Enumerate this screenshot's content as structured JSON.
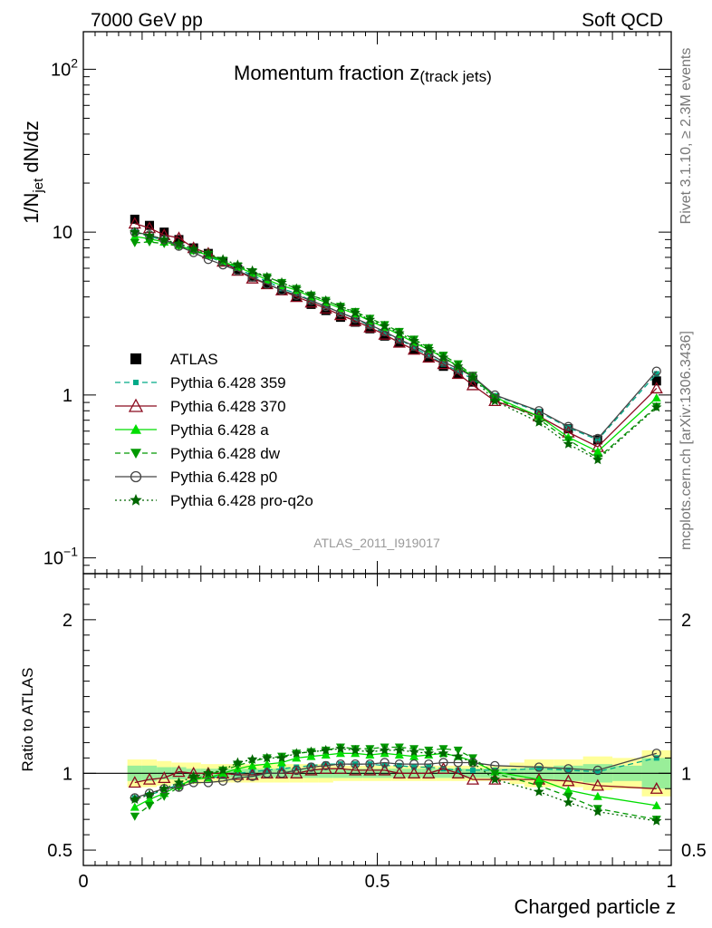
{
  "header": {
    "left": "7000 GeV pp",
    "right": "Soft QCD",
    "title_main": "Momentum fraction z",
    "title_sub": "(track jets)",
    "ylabel_main": "1/N",
    "ylabel_sub": "jet",
    "ylabel_rest": " dN/dz",
    "ratio_ylabel": "Ratio to ATLAS",
    "xlabel": "Charged particle z",
    "watermark": "ATLAS_2011_I919017",
    "side_rivet": "Rivet 3.1.10, ≥ 2.3M events",
    "side_mcplots": "mcplots.cern.ch [arXiv:1306.3436]"
  },
  "chart_data": [
    {
      "type": "line",
      "panel": "main",
      "yscale": "log",
      "xlim": [
        0,
        1
      ],
      "ylim": [
        0.08,
        170
      ],
      "yticks": [
        {
          "v": 0.1,
          "b": "10",
          "s": "−1"
        },
        {
          "v": 1,
          "b": "1",
          "s": ""
        },
        {
          "v": 10,
          "b": "10",
          "s": ""
        },
        {
          "v": 100,
          "b": "10",
          "s": "2"
        }
      ],
      "xticks": [
        {
          "v": 0,
          "l": "0"
        },
        {
          "v": 0.5,
          "l": "0.5"
        },
        {
          "v": 1,
          "l": "1"
        }
      ],
      "x": [
        0.0875,
        0.1125,
        0.1375,
        0.1625,
        0.1875,
        0.2125,
        0.2375,
        0.2625,
        0.2875,
        0.3125,
        0.3375,
        0.3625,
        0.3875,
        0.4125,
        0.4375,
        0.4625,
        0.4875,
        0.5125,
        0.5375,
        0.5625,
        0.5875,
        0.6125,
        0.6375,
        0.6625,
        0.7,
        0.775,
        0.825,
        0.875,
        0.975
      ],
      "series": [
        {
          "name": "ATLAS",
          "color": "#000000",
          "marker": "square",
          "dash": "none",
          "values": [
            12.0,
            11.0,
            10.0,
            9.0,
            8.0,
            7.4,
            6.6,
            5.9,
            5.3,
            4.8,
            4.4,
            4.0,
            3.6,
            3.3,
            3.0,
            2.8,
            2.55,
            2.3,
            2.1,
            1.9,
            1.7,
            1.5,
            1.35,
            1.2,
            0.96,
            0.77,
            0.62,
            0.53,
            1.22
          ]
        },
        {
          "name": "Pythia 6.428 359",
          "color": "#00aa88",
          "marker": "smallsquare",
          "dash": "6,4",
          "values": [
            10.0,
            9.4,
            8.9,
            8.4,
            7.7,
            7.1,
            6.5,
            6.0,
            5.4,
            5.0,
            4.5,
            4.2,
            3.8,
            3.5,
            3.2,
            2.95,
            2.65,
            2.4,
            2.2,
            1.95,
            1.75,
            1.55,
            1.4,
            1.25,
            0.99,
            0.79,
            0.63,
            0.53,
            1.35
          ]
        },
        {
          "name": "Pythia 6.428 370",
          "color": "#8b0a1e",
          "marker": "triangle-open",
          "dash": "none",
          "values": [
            11.3,
            10.6,
            9.6,
            9.2,
            8.0,
            7.4,
            6.6,
            5.8,
            5.2,
            4.8,
            4.4,
            4.0,
            3.7,
            3.4,
            3.1,
            2.85,
            2.6,
            2.35,
            2.1,
            1.9,
            1.7,
            1.55,
            1.35,
            1.15,
            0.92,
            0.74,
            0.59,
            0.48,
            1.1
          ]
        },
        {
          "name": "Pythia 6.428 a",
          "color": "#00dd00",
          "marker": "triangle",
          "dash": "none",
          "values": [
            9.4,
            9.1,
            8.7,
            8.3,
            7.7,
            7.2,
            6.6,
            6.1,
            5.6,
            5.1,
            4.7,
            4.4,
            4.0,
            3.7,
            3.4,
            3.15,
            2.85,
            2.6,
            2.35,
            2.1,
            1.9,
            1.7,
            1.5,
            1.3,
            0.97,
            0.74,
            0.55,
            0.45,
            0.96
          ]
        },
        {
          "name": "Pythia 6.428 dw",
          "color": "#009900",
          "marker": "triangle-down",
          "dash": "6,4",
          "values": [
            8.6,
            8.7,
            8.5,
            8.2,
            7.7,
            7.3,
            6.7,
            6.2,
            5.7,
            5.3,
            4.9,
            4.5,
            4.1,
            3.8,
            3.5,
            3.25,
            2.95,
            2.7,
            2.45,
            2.2,
            1.95,
            1.75,
            1.55,
            1.32,
            0.96,
            0.71,
            0.53,
            0.41,
            0.85
          ]
        },
        {
          "name": "Pythia 6.428 p0",
          "color": "#444444",
          "marker": "circle-open",
          "dash": "none",
          "values": [
            10.0,
            9.6,
            9.0,
            8.2,
            7.5,
            6.8,
            6.3,
            5.8,
            5.3,
            4.8,
            4.4,
            4.1,
            3.8,
            3.5,
            3.2,
            2.95,
            2.7,
            2.45,
            2.2,
            2.0,
            1.8,
            1.6,
            1.45,
            1.3,
            1.0,
            0.8,
            0.64,
            0.54,
            1.4
          ]
        },
        {
          "name": "Pythia 6.428 pro-q2o",
          "color": "#006600",
          "marker": "star",
          "dash": "2,3",
          "values": [
            10.0,
            9.5,
            9.0,
            8.5,
            7.9,
            7.4,
            6.8,
            6.3,
            5.8,
            5.3,
            4.9,
            4.5,
            4.1,
            3.8,
            3.5,
            3.2,
            2.9,
            2.65,
            2.4,
            2.15,
            1.92,
            1.7,
            1.5,
            1.28,
            0.92,
            0.68,
            0.5,
            0.4,
            0.84
          ]
        }
      ]
    },
    {
      "type": "line",
      "panel": "ratio",
      "ylim": [
        0.4,
        2.3
      ],
      "yticks": [
        {
          "v": 0.5,
          "l": "0.5"
        },
        {
          "v": 1,
          "l": "1"
        },
        {
          "v": 2,
          "l": "2"
        }
      ],
      "x": [
        0.0875,
        0.1125,
        0.1375,
        0.1625,
        0.1875,
        0.2125,
        0.2375,
        0.2625,
        0.2875,
        0.3125,
        0.3375,
        0.3625,
        0.3875,
        0.4125,
        0.4375,
        0.4625,
        0.4875,
        0.5125,
        0.5375,
        0.5625,
        0.5875,
        0.6125,
        0.6375,
        0.6625,
        0.7,
        0.775,
        0.825,
        0.875,
        0.975
      ],
      "band_edges": [
        0.075,
        0.1,
        0.125,
        0.15,
        0.175,
        0.2,
        0.225,
        0.25,
        0.275,
        0.3,
        0.325,
        0.35,
        0.375,
        0.4,
        0.425,
        0.45,
        0.475,
        0.5,
        0.525,
        0.55,
        0.575,
        0.6,
        0.625,
        0.65,
        0.675,
        0.725,
        0.75,
        0.8,
        0.85,
        0.9,
        0.95,
        1.0
      ],
      "band_outer": [
        0.09,
        0.09,
        0.08,
        0.07,
        0.07,
        0.06,
        0.06,
        0.06,
        0.06,
        0.06,
        0.06,
        0.06,
        0.06,
        0.06,
        0.05,
        0.05,
        0.05,
        0.05,
        0.05,
        0.05,
        0.05,
        0.05,
        0.05,
        0.05,
        0.05,
        0.07,
        0.09,
        0.09,
        0.11,
        0.1,
        0.15
      ],
      "band_inner": [
        0.05,
        0.05,
        0.04,
        0.04,
        0.03,
        0.03,
        0.03,
        0.03,
        0.03,
        0.03,
        0.03,
        0.03,
        0.03,
        0.03,
        0.03,
        0.03,
        0.03,
        0.03,
        0.03,
        0.03,
        0.03,
        0.03,
        0.03,
        0.03,
        0.03,
        0.03,
        0.04,
        0.05,
        0.06,
        0.05,
        0.1
      ],
      "band_colors": {
        "outer": "#ffff99",
        "inner": "#99ee99"
      },
      "series": [
        {
          "name": "Pythia 6.428 359",
          "color": "#00aa88",
          "marker": "smallsquare",
          "dash": "6,4",
          "values": [
            0.84,
            0.86,
            0.89,
            0.93,
            0.96,
            0.97,
            0.98,
            1.0,
            1.01,
            1.02,
            1.03,
            1.04,
            1.05,
            1.06,
            1.06,
            1.06,
            1.06,
            1.05,
            1.05,
            1.04,
            1.04,
            1.03,
            1.02,
            1.02,
            1.02,
            1.03,
            1.02,
            1.01,
            1.1
          ]
        },
        {
          "name": "Pythia 6.428 370",
          "color": "#8b0a1e",
          "marker": "triangle-open",
          "dash": "none",
          "values": [
            0.94,
            0.96,
            0.97,
            1.01,
            1.0,
            1.0,
            1.0,
            0.99,
            0.99,
            1.0,
            1.0,
            1.0,
            1.02,
            1.03,
            1.03,
            1.02,
            1.02,
            1.02,
            1.0,
            1.0,
            1.0,
            1.03,
            1.0,
            0.96,
            0.96,
            0.96,
            0.95,
            0.92,
            0.9
          ]
        },
        {
          "name": "Pythia 6.428 a",
          "color": "#00dd00",
          "marker": "triangle",
          "dash": "none",
          "values": [
            0.78,
            0.83,
            0.87,
            0.92,
            0.96,
            0.97,
            1.0,
            1.03,
            1.05,
            1.06,
            1.07,
            1.1,
            1.11,
            1.12,
            1.13,
            1.13,
            1.12,
            1.13,
            1.12,
            1.11,
            1.12,
            1.13,
            1.11,
            1.08,
            1.01,
            0.96,
            0.89,
            0.85,
            0.79
          ]
        },
        {
          "name": "Pythia 6.428 dw",
          "color": "#009900",
          "marker": "triangle-down",
          "dash": "6,4",
          "values": [
            0.72,
            0.79,
            0.85,
            0.91,
            0.96,
            0.99,
            1.02,
            1.05,
            1.08,
            1.1,
            1.11,
            1.13,
            1.14,
            1.15,
            1.17,
            1.16,
            1.16,
            1.17,
            1.17,
            1.16,
            1.15,
            1.16,
            1.15,
            1.1,
            1.0,
            0.92,
            0.85,
            0.77,
            0.7
          ]
        },
        {
          "name": "Pythia 6.428 p0",
          "color": "#444444",
          "marker": "circle-open",
          "dash": "none",
          "values": [
            0.84,
            0.87,
            0.9,
            0.91,
            0.94,
            0.94,
            0.95,
            0.97,
            0.98,
            1.0,
            1.0,
            1.02,
            1.04,
            1.05,
            1.06,
            1.06,
            1.06,
            1.07,
            1.06,
            1.06,
            1.06,
            1.07,
            1.07,
            1.07,
            1.05,
            1.04,
            1.03,
            1.02,
            1.13
          ]
        },
        {
          "name": "Pythia 6.428 pro-q2o",
          "color": "#006600",
          "marker": "star",
          "dash": "2,3",
          "values": [
            0.83,
            0.86,
            0.9,
            0.94,
            0.98,
            1.0,
            1.02,
            1.07,
            1.09,
            1.1,
            1.1,
            1.13,
            1.14,
            1.15,
            1.16,
            1.15,
            1.14,
            1.15,
            1.15,
            1.14,
            1.13,
            1.13,
            1.11,
            1.07,
            0.96,
            0.88,
            0.81,
            0.75,
            0.69
          ]
        }
      ]
    }
  ]
}
